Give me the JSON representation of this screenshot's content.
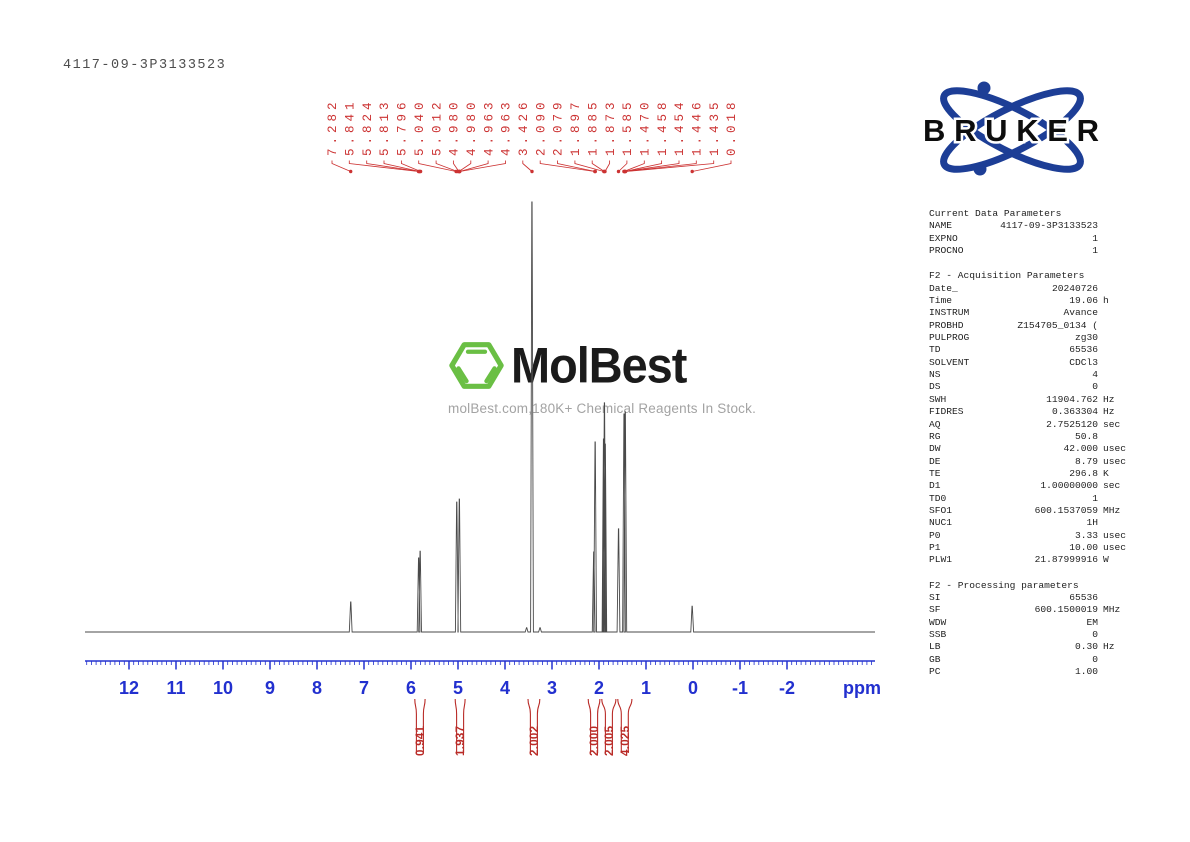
{
  "page": {
    "sample_id": "4117-09-3P3133523"
  },
  "watermark": {
    "brand": "MolBest",
    "tagline": "molBest.com,180K+ Chemical Reagents In Stock.",
    "green": "#6abf44"
  },
  "bruker_logo": {
    "text": "BRUKER",
    "blue": "#1d3e96"
  },
  "colors": {
    "peak_label_red": "#cc3333",
    "integral_red": "#b92b27",
    "axis_blue": "#2230cf",
    "spectrum_line": "#4a4a4a"
  },
  "chart_data": {
    "type": "line",
    "title": "1H NMR spectrum",
    "xlabel": "ppm",
    "x_axis": {
      "ppm_left": 12.9,
      "ppm_right": -3.8,
      "major_ticks": [
        12,
        11,
        10,
        9,
        8,
        7,
        6,
        5,
        4,
        3,
        2,
        1,
        0,
        -1,
        -2
      ],
      "minor_tick_step": 0.1,
      "unit_label": "ppm"
    },
    "peak_shift_labels": [
      "7.282",
      "5.841",
      "5.824",
      "5.813",
      "5.796",
      "5.040",
      "5.012",
      "4.980",
      "4.980",
      "4.963",
      "4.963",
      "3.426",
      "2.090",
      "2.079",
      "1.897",
      "1.885",
      "1.873",
      "1.585",
      "1.470",
      "1.458",
      "1.454",
      "1.446",
      "1.435",
      "0.018"
    ],
    "peaks": [
      {
        "ppm": 7.282,
        "rel_height": 0.07
      },
      {
        "ppm": 5.838,
        "rel_height": 0.172
      },
      {
        "ppm": 5.806,
        "rel_height": 0.188
      },
      {
        "ppm": 5.026,
        "rel_height": 0.302
      },
      {
        "ppm": 4.972,
        "rel_height": 0.309
      },
      {
        "ppm": 3.54,
        "rel_height": 0.01
      },
      {
        "ppm": 3.426,
        "rel_height": 1.0
      },
      {
        "ppm": 3.255,
        "rel_height": 0.01
      },
      {
        "ppm": 2.112,
        "rel_height": 0.186
      },
      {
        "ppm": 2.082,
        "rel_height": 0.442
      },
      {
        "ppm": 1.904,
        "rel_height": 0.449
      },
      {
        "ppm": 1.885,
        "rel_height": 0.533
      },
      {
        "ppm": 1.867,
        "rel_height": 0.437
      },
      {
        "ppm": 1.585,
        "rel_height": 0.24
      },
      {
        "ppm": 1.468,
        "rel_height": 0.507
      },
      {
        "ppm": 1.441,
        "rel_height": 0.512
      },
      {
        "ppm": 0.018,
        "rel_height": 0.06
      }
    ],
    "integrals": [
      {
        "value": "0.941",
        "ppm_from": 5.92,
        "ppm_to": 5.7
      },
      {
        "value": "1.937",
        "ppm_from": 5.06,
        "ppm_to": 4.85
      },
      {
        "value": "2.002",
        "ppm_from": 3.51,
        "ppm_to": 3.26
      },
      {
        "value": "2.000",
        "ppm_from": 2.23,
        "ppm_to": 1.98
      },
      {
        "value": "2.005",
        "ppm_from": 1.94,
        "ppm_to": 1.64
      },
      {
        "value": "4.025",
        "ppm_from": 1.6,
        "ppm_to": 1.3
      }
    ]
  },
  "parameters": {
    "sections": [
      {
        "header": "Current Data Parameters",
        "rows": [
          {
            "n": "NAME",
            "v": "4117-09-3P3133523",
            "u": ""
          },
          {
            "n": "EXPNO",
            "v": "1",
            "u": ""
          },
          {
            "n": "PROCNO",
            "v": "1",
            "u": ""
          }
        ]
      },
      {
        "header": "F2 - Acquisition Parameters",
        "rows": [
          {
            "n": "Date_",
            "v": "20240726",
            "u": ""
          },
          {
            "n": "Time",
            "v": "19.06",
            "u": "h"
          },
          {
            "n": "INSTRUM",
            "v": "Avance",
            "u": ""
          },
          {
            "n": "PROBHD",
            "v": "Z154705_0134 (",
            "u": ""
          },
          {
            "n": "PULPROG",
            "v": "zg30",
            "u": ""
          },
          {
            "n": "TD",
            "v": "65536",
            "u": ""
          },
          {
            "n": "SOLVENT",
            "v": "CDCl3",
            "u": ""
          },
          {
            "n": "NS",
            "v": "4",
            "u": ""
          },
          {
            "n": "DS",
            "v": "0",
            "u": ""
          },
          {
            "n": "SWH",
            "v": "11904.762",
            "u": "Hz"
          },
          {
            "n": "FIDRES",
            "v": "0.363304",
            "u": "Hz"
          },
          {
            "n": "AQ",
            "v": "2.7525120",
            "u": "sec"
          },
          {
            "n": "RG",
            "v": "50.8",
            "u": ""
          },
          {
            "n": "DW",
            "v": "42.000",
            "u": "usec"
          },
          {
            "n": "DE",
            "v": "8.79",
            "u": "usec"
          },
          {
            "n": "TE",
            "v": "296.8",
            "u": "K"
          },
          {
            "n": "D1",
            "v": "1.00000000",
            "u": "sec"
          },
          {
            "n": "TD0",
            "v": "1",
            "u": ""
          },
          {
            "n": "SFO1",
            "v": "600.1537059",
            "u": "MHz"
          },
          {
            "n": "NUC1",
            "v": "1H",
            "u": ""
          },
          {
            "n": "P0",
            "v": "3.33",
            "u": "usec"
          },
          {
            "n": "P1",
            "v": "10.00",
            "u": "usec"
          },
          {
            "n": "PLW1",
            "v": "21.87999916",
            "u": "W"
          }
        ]
      },
      {
        "header": "F2 - Processing parameters",
        "rows": [
          {
            "n": "SI",
            "v": "65536",
            "u": ""
          },
          {
            "n": "SF",
            "v": "600.1500019",
            "u": "MHz"
          },
          {
            "n": "WDW",
            "v": "EM",
            "u": ""
          },
          {
            "n": "SSB",
            "v": "0",
            "u": ""
          },
          {
            "n": "LB",
            "v": "0.30",
            "u": "Hz"
          },
          {
            "n": "GB",
            "v": "0",
            "u": ""
          },
          {
            "n": "PC",
            "v": "1.00",
            "u": ""
          }
        ]
      }
    ]
  }
}
